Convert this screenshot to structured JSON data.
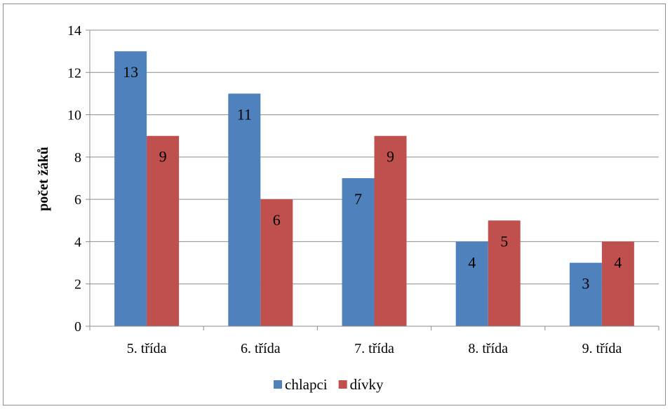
{
  "chart_data": {
    "type": "bar",
    "title": "",
    "xlabel": "",
    "ylabel": "počet žáků",
    "ylim": [
      0,
      14
    ],
    "yticks": [
      0,
      2,
      4,
      6,
      8,
      10,
      12,
      14
    ],
    "grid": true,
    "legend_position": "bottom",
    "categories": [
      "5. třída",
      "6. třída",
      "7. třída",
      "8. třída",
      "9. třída"
    ],
    "series": [
      {
        "name": "chlapci",
        "color": "#4f81bd",
        "values": [
          13,
          11,
          7,
          4,
          3
        ]
      },
      {
        "name": "dívky",
        "color": "#c0504d",
        "values": [
          9,
          6,
          9,
          5,
          4
        ]
      }
    ]
  }
}
